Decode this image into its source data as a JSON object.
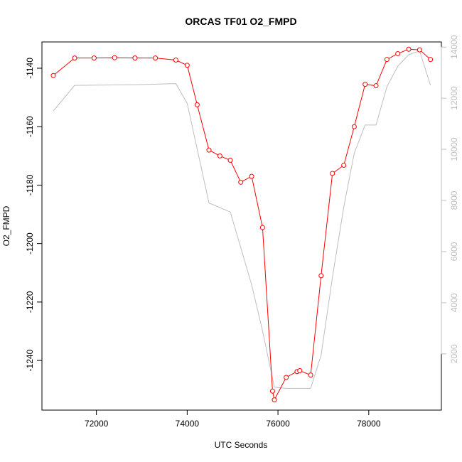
{
  "chart_data": {
    "type": "line",
    "title": "ORCAS TF01 O2_FMPD",
    "xlabel": "UTC Seconds",
    "ylabel": "O2_FMPD",
    "xlim": [
      70800,
      79600
    ],
    "ylim": [
      -1257,
      -1131
    ],
    "y2lim": [
      -200,
      14200
    ],
    "x_ticks": [
      72000,
      74000,
      76000,
      78000
    ],
    "y_ticks": [
      -1140,
      -1160,
      -1180,
      -1200,
      -1220,
      -1240
    ],
    "y2_ticks": [
      2000,
      4000,
      6000,
      8000,
      10000,
      12000,
      14000
    ],
    "grid": false,
    "legend": "none",
    "series": [
      {
        "axis": "left",
        "color": "#ff0000",
        "marker": "open-circle",
        "x": [
          71050,
          71520,
          71950,
          72400,
          72850,
          73300,
          73750,
          74000,
          74220,
          74480,
          74720,
          74950,
          75180,
          75420,
          75660,
          75880,
          75920,
          76180,
          76420,
          76480,
          76720,
          76950,
          77200,
          77450,
          77680,
          77920,
          78160,
          78400,
          78640,
          78880,
          79120,
          79360
        ],
        "y": [
          -1142.5,
          -1136.5,
          -1136.5,
          -1136.4,
          -1136.5,
          -1136.5,
          -1137.2,
          -1139.0,
          -1152.5,
          -1168.0,
          -1170.0,
          -1171.5,
          -1179.0,
          -1177.0,
          -1194.5,
          -1250.5,
          -1253.5,
          -1245.8,
          -1243.8,
          -1243.5,
          -1245.0,
          -1211.0,
          -1176.0,
          -1173.2,
          -1160.0,
          -1145.5,
          -1146.0,
          -1137.0,
          -1135.0,
          -1133.5,
          -1133.7,
          -1137.0
        ]
      },
      {
        "axis": "right",
        "color": "#bebebe",
        "marker": "none",
        "x": [
          71050,
          71520,
          72900,
          73750,
          74000,
          74480,
          74950,
          75420,
          75660,
          75920,
          76180,
          76720,
          76950,
          77200,
          77450,
          77680,
          77920,
          78160,
          78400,
          78640,
          78880,
          79120,
          79360
        ],
        "y": [
          11500,
          12500,
          12530,
          12570,
          11800,
          7900,
          7550,
          4700,
          2900,
          700,
          650,
          650,
          1950,
          5000,
          7750,
          9850,
          10950,
          10950,
          12450,
          13250,
          13700,
          13850,
          12500
        ]
      }
    ]
  }
}
